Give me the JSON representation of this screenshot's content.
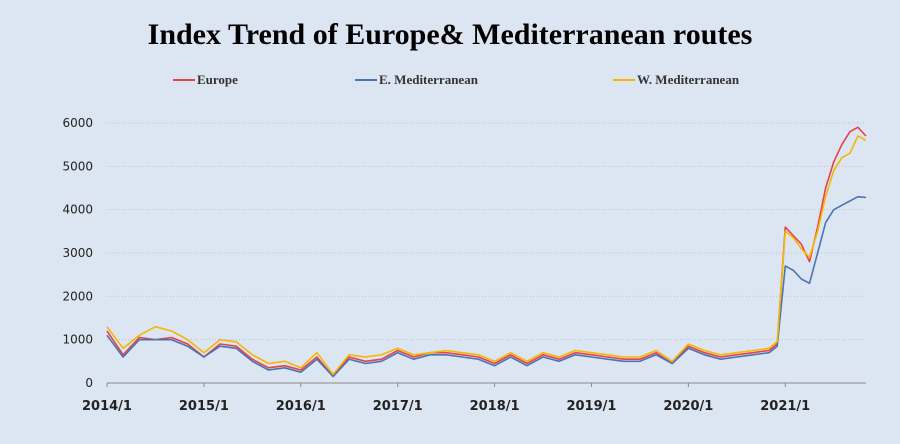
{
  "chart_data": {
    "type": "line",
    "title": "Index Trend of Europe& Mediterranean routes",
    "xlabel": "",
    "ylabel": "",
    "ylim": [
      0,
      6000
    ],
    "xlim": [
      "2014-01",
      "2021-11"
    ],
    "yticks": [
      0,
      1000,
      2000,
      3000,
      4000,
      5000,
      6000
    ],
    "y_tick_labels": [
      "0",
      "1000",
      "2000",
      "3000",
      "4000",
      "5000",
      "6000"
    ],
    "x_tick_labels": [
      "2014/1",
      "2015/1",
      "2016/1",
      "2017/1",
      "2018/1",
      "2019/1",
      "2020/1",
      "2021/1"
    ],
    "grid": "horizontal dotted",
    "legend_position": "top",
    "x": [
      "2014-01",
      "2014-03",
      "2014-05",
      "2014-07",
      "2014-09",
      "2014-11",
      "2015-01",
      "2015-03",
      "2015-05",
      "2015-07",
      "2015-09",
      "2015-11",
      "2016-01",
      "2016-03",
      "2016-05",
      "2016-07",
      "2016-09",
      "2016-11",
      "2017-01",
      "2017-03",
      "2017-05",
      "2017-07",
      "2017-09",
      "2017-11",
      "2018-01",
      "2018-03",
      "2018-05",
      "2018-07",
      "2018-09",
      "2018-11",
      "2019-01",
      "2019-03",
      "2019-05",
      "2019-07",
      "2019-09",
      "2019-11",
      "2020-01",
      "2020-03",
      "2020-05",
      "2020-07",
      "2020-09",
      "2020-11",
      "2020-12",
      "2021-01",
      "2021-02",
      "2021-03",
      "2021-04",
      "2021-05",
      "2021-06",
      "2021-07",
      "2021-08",
      "2021-09",
      "2021-10",
      "2021-11"
    ],
    "series": [
      {
        "name": "Europe",
        "color": "#e8414a",
        "values": [
          1200,
          650,
          1050,
          1000,
          1050,
          900,
          600,
          900,
          850,
          550,
          350,
          400,
          300,
          600,
          150,
          600,
          500,
          550,
          750,
          600,
          700,
          700,
          650,
          600,
          450,
          650,
          450,
          650,
          550,
          700,
          650,
          600,
          550,
          550,
          700,
          450,
          850,
          700,
          600,
          650,
          700,
          750,
          900,
          3600,
          3400,
          3200,
          2800,
          3600,
          4500,
          5100,
          5500,
          5800,
          5900,
          5700
        ]
      },
      {
        "name": "E. Mediterranean",
        "color": "#4a73b5",
        "values": [
          1100,
          600,
          1000,
          1000,
          1000,
          850,
          600,
          850,
          800,
          500,
          300,
          350,
          250,
          550,
          150,
          550,
          450,
          500,
          700,
          550,
          650,
          650,
          600,
          550,
          400,
          600,
          400,
          600,
          500,
          650,
          600,
          550,
          500,
          500,
          650,
          450,
          800,
          650,
          550,
          600,
          650,
          700,
          850,
          2700,
          2600,
          2400,
          2300,
          3000,
          3700,
          4000,
          4100,
          4200,
          4300,
          4280
        ]
      },
      {
        "name": "W. Mediterranean",
        "color": "#f5b700",
        "values": [
          1300,
          800,
          1100,
          1300,
          1200,
          1000,
          700,
          1000,
          950,
          650,
          450,
          500,
          350,
          700,
          200,
          650,
          600,
          650,
          800,
          650,
          700,
          750,
          700,
          650,
          500,
          700,
          500,
          700,
          600,
          750,
          700,
          650,
          600,
          600,
          750,
          500,
          900,
          750,
          650,
          700,
          750,
          800,
          950,
          3500,
          3350,
          3100,
          2900,
          3500,
          4300,
          4900,
          5200,
          5300,
          5700,
          5600
        ]
      }
    ]
  }
}
